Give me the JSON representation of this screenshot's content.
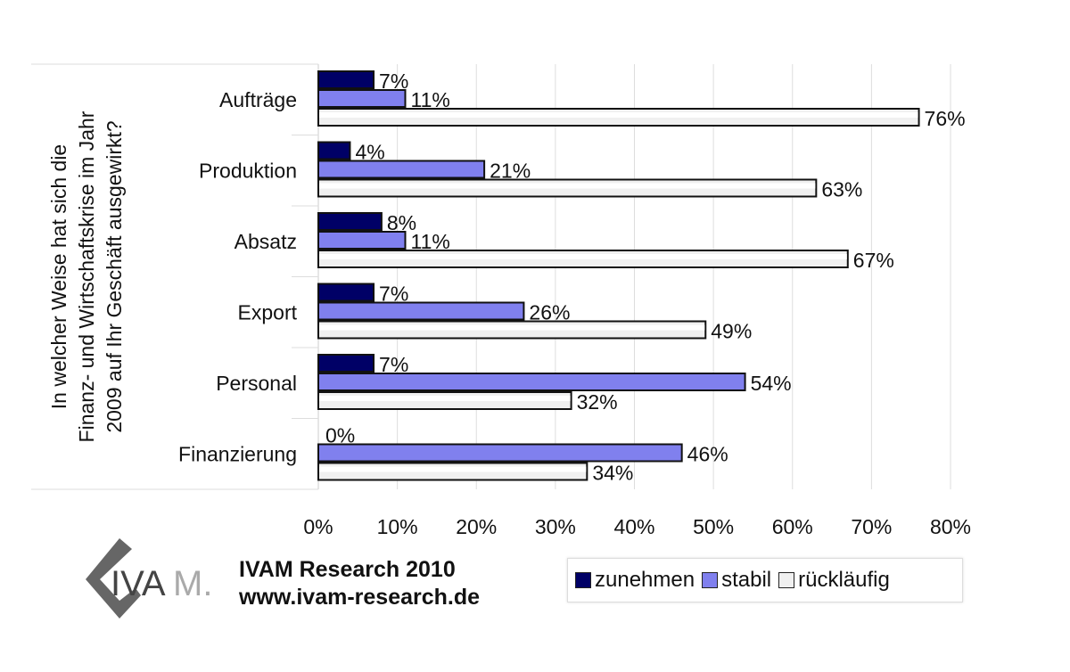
{
  "chart_data": {
    "type": "bar",
    "orientation": "horizontal",
    "ylabel": "In welcher Weise hat sich die Finanz- und Wirtschaftskrise im Jahr 2009 auf Ihr Geschäft ausgewirkt?",
    "ylabel_lines": [
      "In welcher Weise hat sich die",
      "Finanz- und Wirtschaftskrise im Jahr",
      "2009 auf Ihr Geschäft ausgewirkt?"
    ],
    "categories": [
      "Aufträge",
      "Produktion",
      "Absatz",
      "Export",
      "Personal",
      "Finanzierung"
    ],
    "series": [
      {
        "name": "zunehmen",
        "color": "#000066",
        "values": [
          7,
          4,
          8,
          7,
          7,
          0
        ]
      },
      {
        "name": "stabil",
        "color": "#8080ee",
        "values": [
          11,
          21,
          11,
          26,
          54,
          46
        ]
      },
      {
        "name": "rückläufig",
        "color": "#f0f0f0",
        "values": [
          76,
          63,
          67,
          49,
          32,
          34
        ]
      }
    ],
    "xlim": [
      0,
      80
    ],
    "xticks": [
      "0%",
      "10%",
      "20%",
      "30%",
      "40%",
      "50%",
      "60%",
      "70%",
      "80%"
    ],
    "grid": true,
    "legend": "bottom-right"
  },
  "footer": {
    "logo_text": "IVAM.",
    "line1": "IVAM Research 2010",
    "line2": "www.ivam-research.de"
  }
}
